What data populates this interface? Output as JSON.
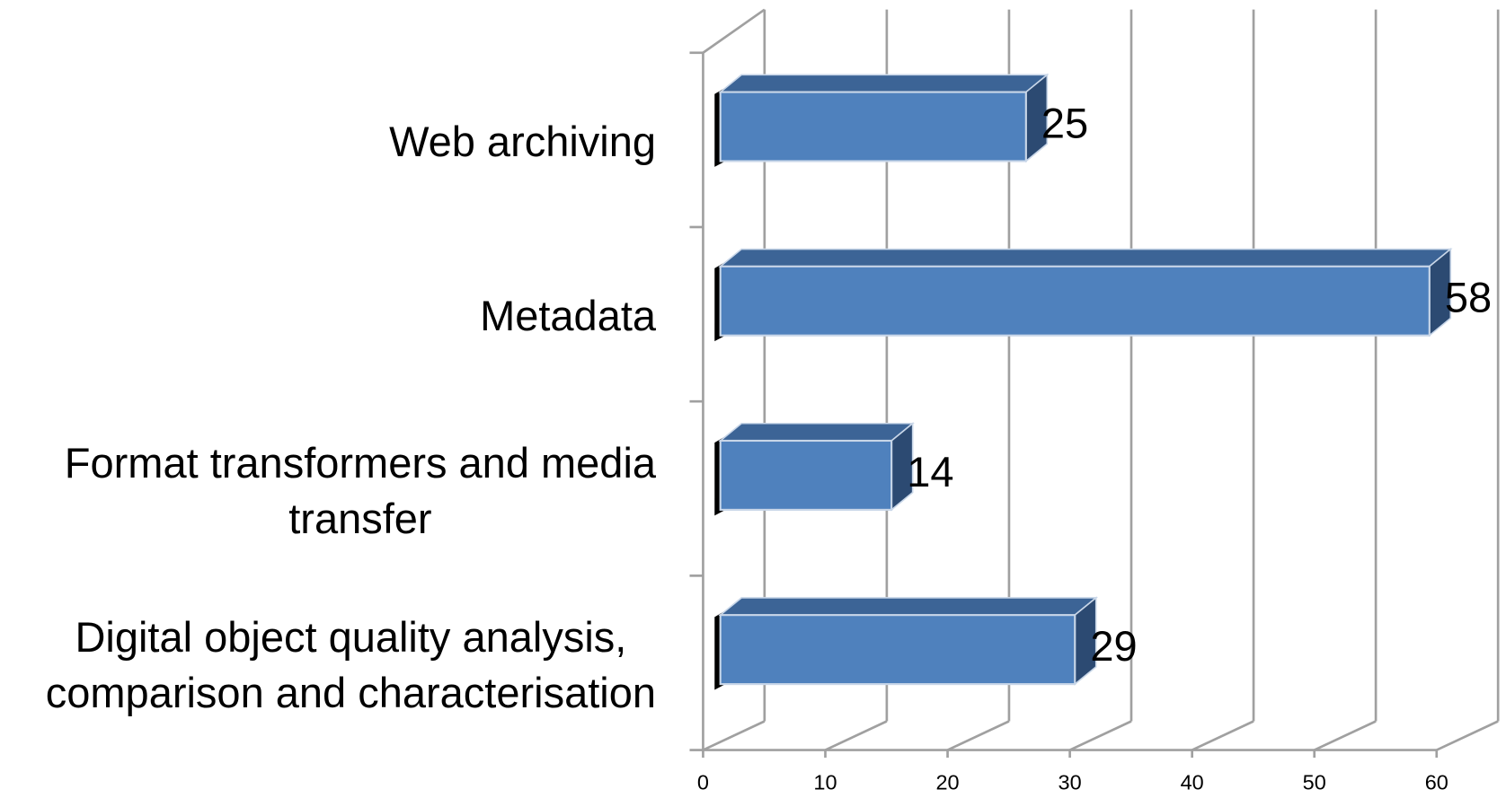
{
  "chart_data": {
    "type": "bar3d_horizontal",
    "categories": [
      "Web archiving",
      "Metadata",
      "Format transformers and media\ntransfer",
      "Digital object quality analysis,\ncomparison and characterisation"
    ],
    "values": [
      25,
      58,
      14,
      29
    ],
    "color": "#4f81bd",
    "xlim": [
      0,
      60
    ],
    "xticks": [
      0,
      10,
      20,
      30,
      40,
      50,
      60
    ],
    "grid": true
  }
}
